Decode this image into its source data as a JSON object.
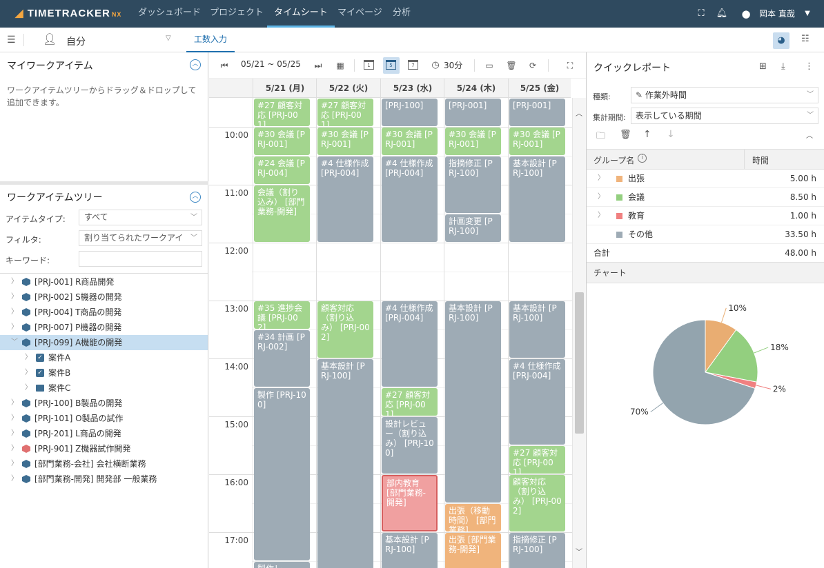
{
  "app": {
    "logo_text": "TIMETRACKER",
    "logo_suffix": "NX",
    "brand_color": "#2f4a5f",
    "accent_color": "#f4a640"
  },
  "nav": [
    {
      "label": "ダッシュボード",
      "active": false
    },
    {
      "label": "プロジェクト",
      "active": false
    },
    {
      "label": "タイムシート",
      "active": true
    },
    {
      "label": "マイページ",
      "active": false
    },
    {
      "label": "分析",
      "active": false
    }
  ],
  "header_icons": [
    "fullscreen-icon",
    "bell-icon",
    "user-circle-icon",
    "chevron-down-icon"
  ],
  "user": {
    "name": "岡本 直哉"
  },
  "subbar": {
    "person": "自分",
    "tab": "工数入力"
  },
  "my_work_items": {
    "title": "マイワークアイテム",
    "hint": "ワークアイテムツリーからドラッグ＆ドロップして追加できます。"
  },
  "work_tree": {
    "title": "ワークアイテムツリー",
    "filters": {
      "item_type_label": "アイテムタイプ:",
      "item_type_value": "すべて",
      "filter_label": "フィルタ:",
      "filter_value": "割り当てられたワークアイ",
      "keyword_label": "キーワード:",
      "keyword_value": ""
    },
    "items": [
      {
        "label": "[PRJ-001] R商品開発",
        "icon": "cube-icon",
        "level": 0,
        "expanded": false,
        "selected": false
      },
      {
        "label": "[PRJ-002] S機器の開発",
        "icon": "cube-icon",
        "level": 0,
        "expanded": false,
        "selected": false
      },
      {
        "label": "[PRJ-004] T商品の開発",
        "icon": "cube-icon",
        "level": 0,
        "expanded": false,
        "selected": false
      },
      {
        "label": "[PRJ-007] P機器の開発",
        "icon": "cube-icon",
        "level": 0,
        "expanded": false,
        "selected": false
      },
      {
        "label": "[PRJ-099] A機能の開発",
        "icon": "cube-icon",
        "level": 0,
        "expanded": true,
        "selected": true
      },
      {
        "label": "案件A",
        "icon": "checkbox-icon",
        "level": 1,
        "expanded": false,
        "selected": false
      },
      {
        "label": "案件B",
        "icon": "checkbox-icon",
        "level": 1,
        "expanded": false,
        "selected": false
      },
      {
        "label": "案件C",
        "icon": "folder-icon",
        "level": 1,
        "expanded": false,
        "selected": false
      },
      {
        "label": "[PRJ-100] B製品の開発",
        "icon": "cube-icon",
        "level": 0,
        "expanded": false,
        "selected": false
      },
      {
        "label": "[PRJ-101] O製品の試作",
        "icon": "cube-icon",
        "level": 0,
        "expanded": false,
        "selected": false
      },
      {
        "label": "[PRJ-201] L商品の開発",
        "icon": "cube-icon",
        "level": 0,
        "expanded": false,
        "selected": false
      },
      {
        "label": "[PRJ-901] Z機器試作開発",
        "icon": "cube-red-icon",
        "level": 0,
        "expanded": false,
        "selected": false
      },
      {
        "label": "[部門業務-会社] 会社横断業務",
        "icon": "cube-icon",
        "level": 0,
        "expanded": false,
        "selected": false
      },
      {
        "label": "[部門業務-開発] 開発部 一般業務",
        "icon": "cube-icon",
        "level": 0,
        "expanded": false,
        "selected": false
      }
    ]
  },
  "calendar": {
    "date_range": "05/21 ~ 05/25",
    "interval": "30分",
    "view_day_labels": [
      "1",
      "5",
      "7"
    ],
    "days": [
      "5/21 (月)",
      "5/22 (火)",
      "5/23 (水)",
      "5/24 (木)",
      "5/25 (金)"
    ],
    "hours": [
      "10:00",
      "11:00",
      "12:00",
      "13:00",
      "14:00",
      "15:00",
      "16:00",
      "17:00"
    ],
    "events": [
      {
        "day": 0,
        "start": "09:30",
        "end": "10:00",
        "text": "#27 顧客対応 [PRJ-001]",
        "color": "green"
      },
      {
        "day": 0,
        "start": "10:00",
        "end": "10:30",
        "text": "#30 会議 [PRJ-001]",
        "color": "green"
      },
      {
        "day": 0,
        "start": "10:30",
        "end": "11:00",
        "text": "#24 会議 [PRJ-004]",
        "color": "green"
      },
      {
        "day": 0,
        "start": "11:00",
        "end": "12:00",
        "text": "会議（割り込み） [部門業務-開発]",
        "color": "green"
      },
      {
        "day": 0,
        "start": "13:00",
        "end": "13:30",
        "text": "#35 進捗会議 [PRJ-002]",
        "color": "green"
      },
      {
        "day": 0,
        "start": "13:30",
        "end": "14:30",
        "text": "#34 計画 [PRJ-002]",
        "color": "gray"
      },
      {
        "day": 0,
        "start": "14:30",
        "end": "17:30",
        "text": "製作 [PRJ-100]",
        "color": "gray"
      },
      {
        "day": 0,
        "start": "17:30",
        "end": "18:00",
        "text": "製作レ",
        "color": "gray"
      },
      {
        "day": 1,
        "start": "09:30",
        "end": "10:00",
        "text": "#27 顧客対応 [PRJ-001]",
        "color": "green"
      },
      {
        "day": 1,
        "start": "10:00",
        "end": "10:30",
        "text": "#30 会議 [PRJ-001]",
        "color": "green"
      },
      {
        "day": 1,
        "start": "10:30",
        "end": "12:00",
        "text": "#4 仕様作成 [PRJ-004]",
        "color": "gray"
      },
      {
        "day": 1,
        "start": "13:00",
        "end": "14:00",
        "text": "顧客対応（割り込み） [PRJ-002]",
        "color": "green"
      },
      {
        "day": 1,
        "start": "14:00",
        "end": "18:00",
        "text": "基本設計 [PRJ-100]",
        "color": "gray"
      },
      {
        "day": 2,
        "start": "09:30",
        "end": "10:00",
        "text": "[PRJ-100]",
        "color": "gray"
      },
      {
        "day": 2,
        "start": "10:00",
        "end": "10:30",
        "text": "#30 会議 [PRJ-001]",
        "color": "green"
      },
      {
        "day": 2,
        "start": "10:30",
        "end": "12:00",
        "text": "#4 仕様作成 [PRJ-004]",
        "color": "gray"
      },
      {
        "day": 2,
        "start": "13:00",
        "end": "14:30",
        "text": "#4 仕様作成 [PRJ-004]",
        "color": "gray"
      },
      {
        "day": 2,
        "start": "14:30",
        "end": "15:00",
        "text": "#27 顧客対応 [PRJ-001]",
        "color": "green"
      },
      {
        "day": 2,
        "start": "15:00",
        "end": "16:00",
        "text": "設計レビュー（割り込み） [PRJ-100]",
        "color": "gray"
      },
      {
        "day": 2,
        "start": "16:00",
        "end": "17:00",
        "text": "部内教育 [部門業務-開発]",
        "color": "red"
      },
      {
        "day": 2,
        "start": "17:00",
        "end": "18:00",
        "text": "基本設計 [PRJ-100]",
        "color": "gray"
      },
      {
        "day": 3,
        "start": "09:30",
        "end": "10:00",
        "text": "[PRJ-001]",
        "color": "gray"
      },
      {
        "day": 3,
        "start": "10:00",
        "end": "10:30",
        "text": "#30 会議 [PRJ-001]",
        "color": "green"
      },
      {
        "day": 3,
        "start": "10:30",
        "end": "11:30",
        "text": "指摘修正 [PRJ-100]",
        "color": "gray"
      },
      {
        "day": 3,
        "start": "11:30",
        "end": "12:00",
        "text": "計画変更 [PRJ-100]",
        "color": "gray"
      },
      {
        "day": 3,
        "start": "13:00",
        "end": "16:30",
        "text": "基本設計 [PRJ-100]",
        "color": "gray"
      },
      {
        "day": 3,
        "start": "16:30",
        "end": "17:00",
        "text": "出張（移動時間） [部門業務]",
        "color": "orange"
      },
      {
        "day": 3,
        "start": "17:00",
        "end": "18:00",
        "text": "出張 [部門業務-開発]",
        "color": "orange"
      },
      {
        "day": 4,
        "start": "09:30",
        "end": "10:00",
        "text": "[PRJ-001]",
        "color": "gray"
      },
      {
        "day": 4,
        "start": "10:00",
        "end": "10:30",
        "text": "#30 会議 [PRJ-001]",
        "color": "green"
      },
      {
        "day": 4,
        "start": "10:30",
        "end": "12:00",
        "text": "基本設計 [PRJ-100]",
        "color": "gray"
      },
      {
        "day": 4,
        "start": "13:00",
        "end": "14:00",
        "text": "基本設計 [PRJ-100]",
        "color": "gray"
      },
      {
        "day": 4,
        "start": "14:00",
        "end": "15:30",
        "text": "#4 仕様作成 [PRJ-004]",
        "color": "gray"
      },
      {
        "day": 4,
        "start": "15:30",
        "end": "16:00",
        "text": "#27 顧客対応 [PRJ-001]",
        "color": "green"
      },
      {
        "day": 4,
        "start": "16:00",
        "end": "17:00",
        "text": "顧客対応（割り込み） [PRJ-002]",
        "color": "green"
      },
      {
        "day": 4,
        "start": "17:00",
        "end": "18:00",
        "text": "指摘修正 [PRJ-100]",
        "color": "gray"
      }
    ]
  },
  "quick_report": {
    "title": "クイックレポート",
    "type_label": "種類:",
    "type_value": "作業外時間",
    "period_label": "集計期間:",
    "period_value": "表示している期間",
    "col_group": "グループ名",
    "col_time": "時間",
    "rows": [
      {
        "name": "出張",
        "value": "5.00 h",
        "color": "#f0b47c"
      },
      {
        "name": "会議",
        "value": "8.50 h",
        "color": "#93cf7f"
      },
      {
        "name": "教育",
        "value": "1.00 h",
        "color": "#f08080"
      },
      {
        "name": "その他",
        "value": "33.50 h",
        "color": "#9eabb5"
      }
    ],
    "total_label": "合計",
    "total_value": "48.00 h",
    "chart_section": "チャート"
  },
  "chart_data": {
    "type": "pie",
    "categories": [
      "出張",
      "会議",
      "教育",
      "その他"
    ],
    "values": [
      10,
      18,
      2,
      70
    ],
    "labels": [
      "10%",
      "18%",
      "2%",
      "70%"
    ],
    "colors": [
      "#e9ad72",
      "#93cf7f",
      "#f08080",
      "#93a4ae"
    ]
  }
}
